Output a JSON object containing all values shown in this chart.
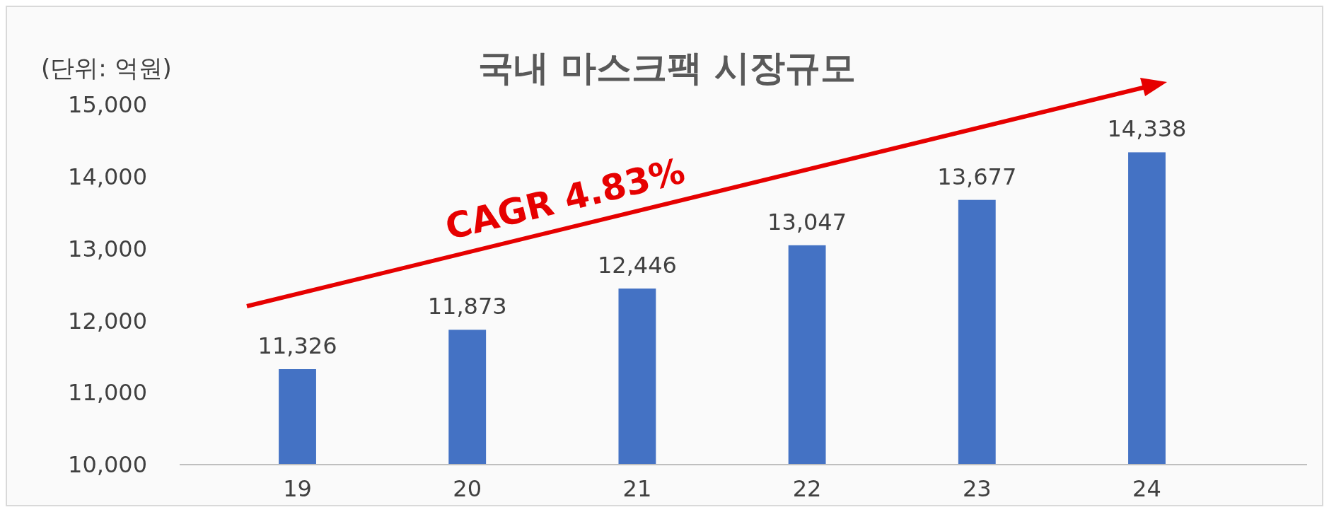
{
  "chart_data": {
    "type": "bar",
    "title": "국내 마스크팩 시장규모",
    "ylabel": "(단위: 억원)",
    "categories": [
      "19",
      "20",
      "21",
      "22",
      "23",
      "24"
    ],
    "values": [
      11326,
      11873,
      12446,
      13047,
      13677,
      14338
    ],
    "color": "#4472c4",
    "ylim": [
      10000,
      15000
    ],
    "yticks": [
      {
        "value": 10000,
        "label": "10,000"
      },
      {
        "value": 11000,
        "label": "11,000"
      },
      {
        "value": 12000,
        "label": "12,000"
      },
      {
        "value": 13000,
        "label": "13,000"
      },
      {
        "value": 14000,
        "label": "14,000"
      },
      {
        "value": 15000,
        "label": "15,000"
      }
    ],
    "value_labels": [
      "11,326",
      "11,873",
      "12,446",
      "13,047",
      "13,677",
      "14,338"
    ],
    "grid": false,
    "annotations": [
      "CAGR 4.83%"
    ]
  }
}
